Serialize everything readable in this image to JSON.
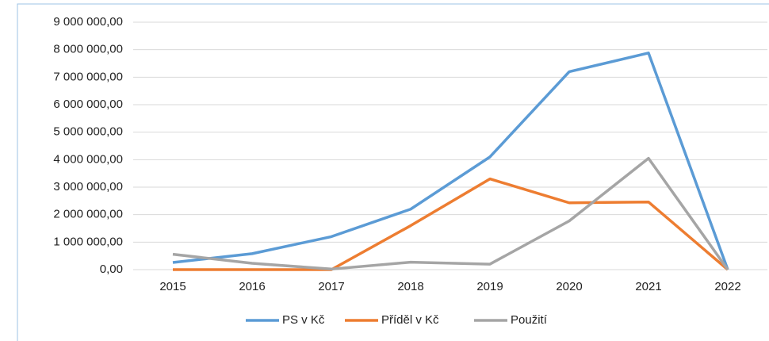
{
  "chart_data": {
    "type": "line",
    "categories": [
      "2015",
      "2016",
      "2017",
      "2018",
      "2019",
      "2020",
      "2021",
      "2022"
    ],
    "series": [
      {
        "name": "PS v Kč",
        "color": "#5b9bd5",
        "values": [
          260000,
          580000,
          1200000,
          2200000,
          4100000,
          7200000,
          7880000,
          0
        ]
      },
      {
        "name": "Příděl v Kč",
        "color": "#ed7d31",
        "values": [
          0,
          0,
          0,
          1600000,
          3300000,
          2430000,
          2460000,
          0
        ]
      },
      {
        "name": "Použití",
        "color": "#a5a5a5",
        "values": [
          560000,
          230000,
          20000,
          270000,
          200000,
          1770000,
          4050000,
          0
        ]
      }
    ],
    "ylim": [
      0,
      9000000
    ],
    "yticks": [
      {
        "value": 0,
        "label": "0,00"
      },
      {
        "value": 1000000,
        "label": "1 000 000,00"
      },
      {
        "value": 2000000,
        "label": "2 000 000,00"
      },
      {
        "value": 3000000,
        "label": "3 000 000,00"
      },
      {
        "value": 4000000,
        "label": "4 000 000,00"
      },
      {
        "value": 5000000,
        "label": "5 000 000,00"
      },
      {
        "value": 6000000,
        "label": "6 000 000,00"
      },
      {
        "value": 7000000,
        "label": "7 000 000,00"
      },
      {
        "value": 8000000,
        "label": "8 000 000,00"
      },
      {
        "value": 9000000,
        "label": "9 000 000,00"
      }
    ],
    "grid": true,
    "legend": "bottom"
  }
}
